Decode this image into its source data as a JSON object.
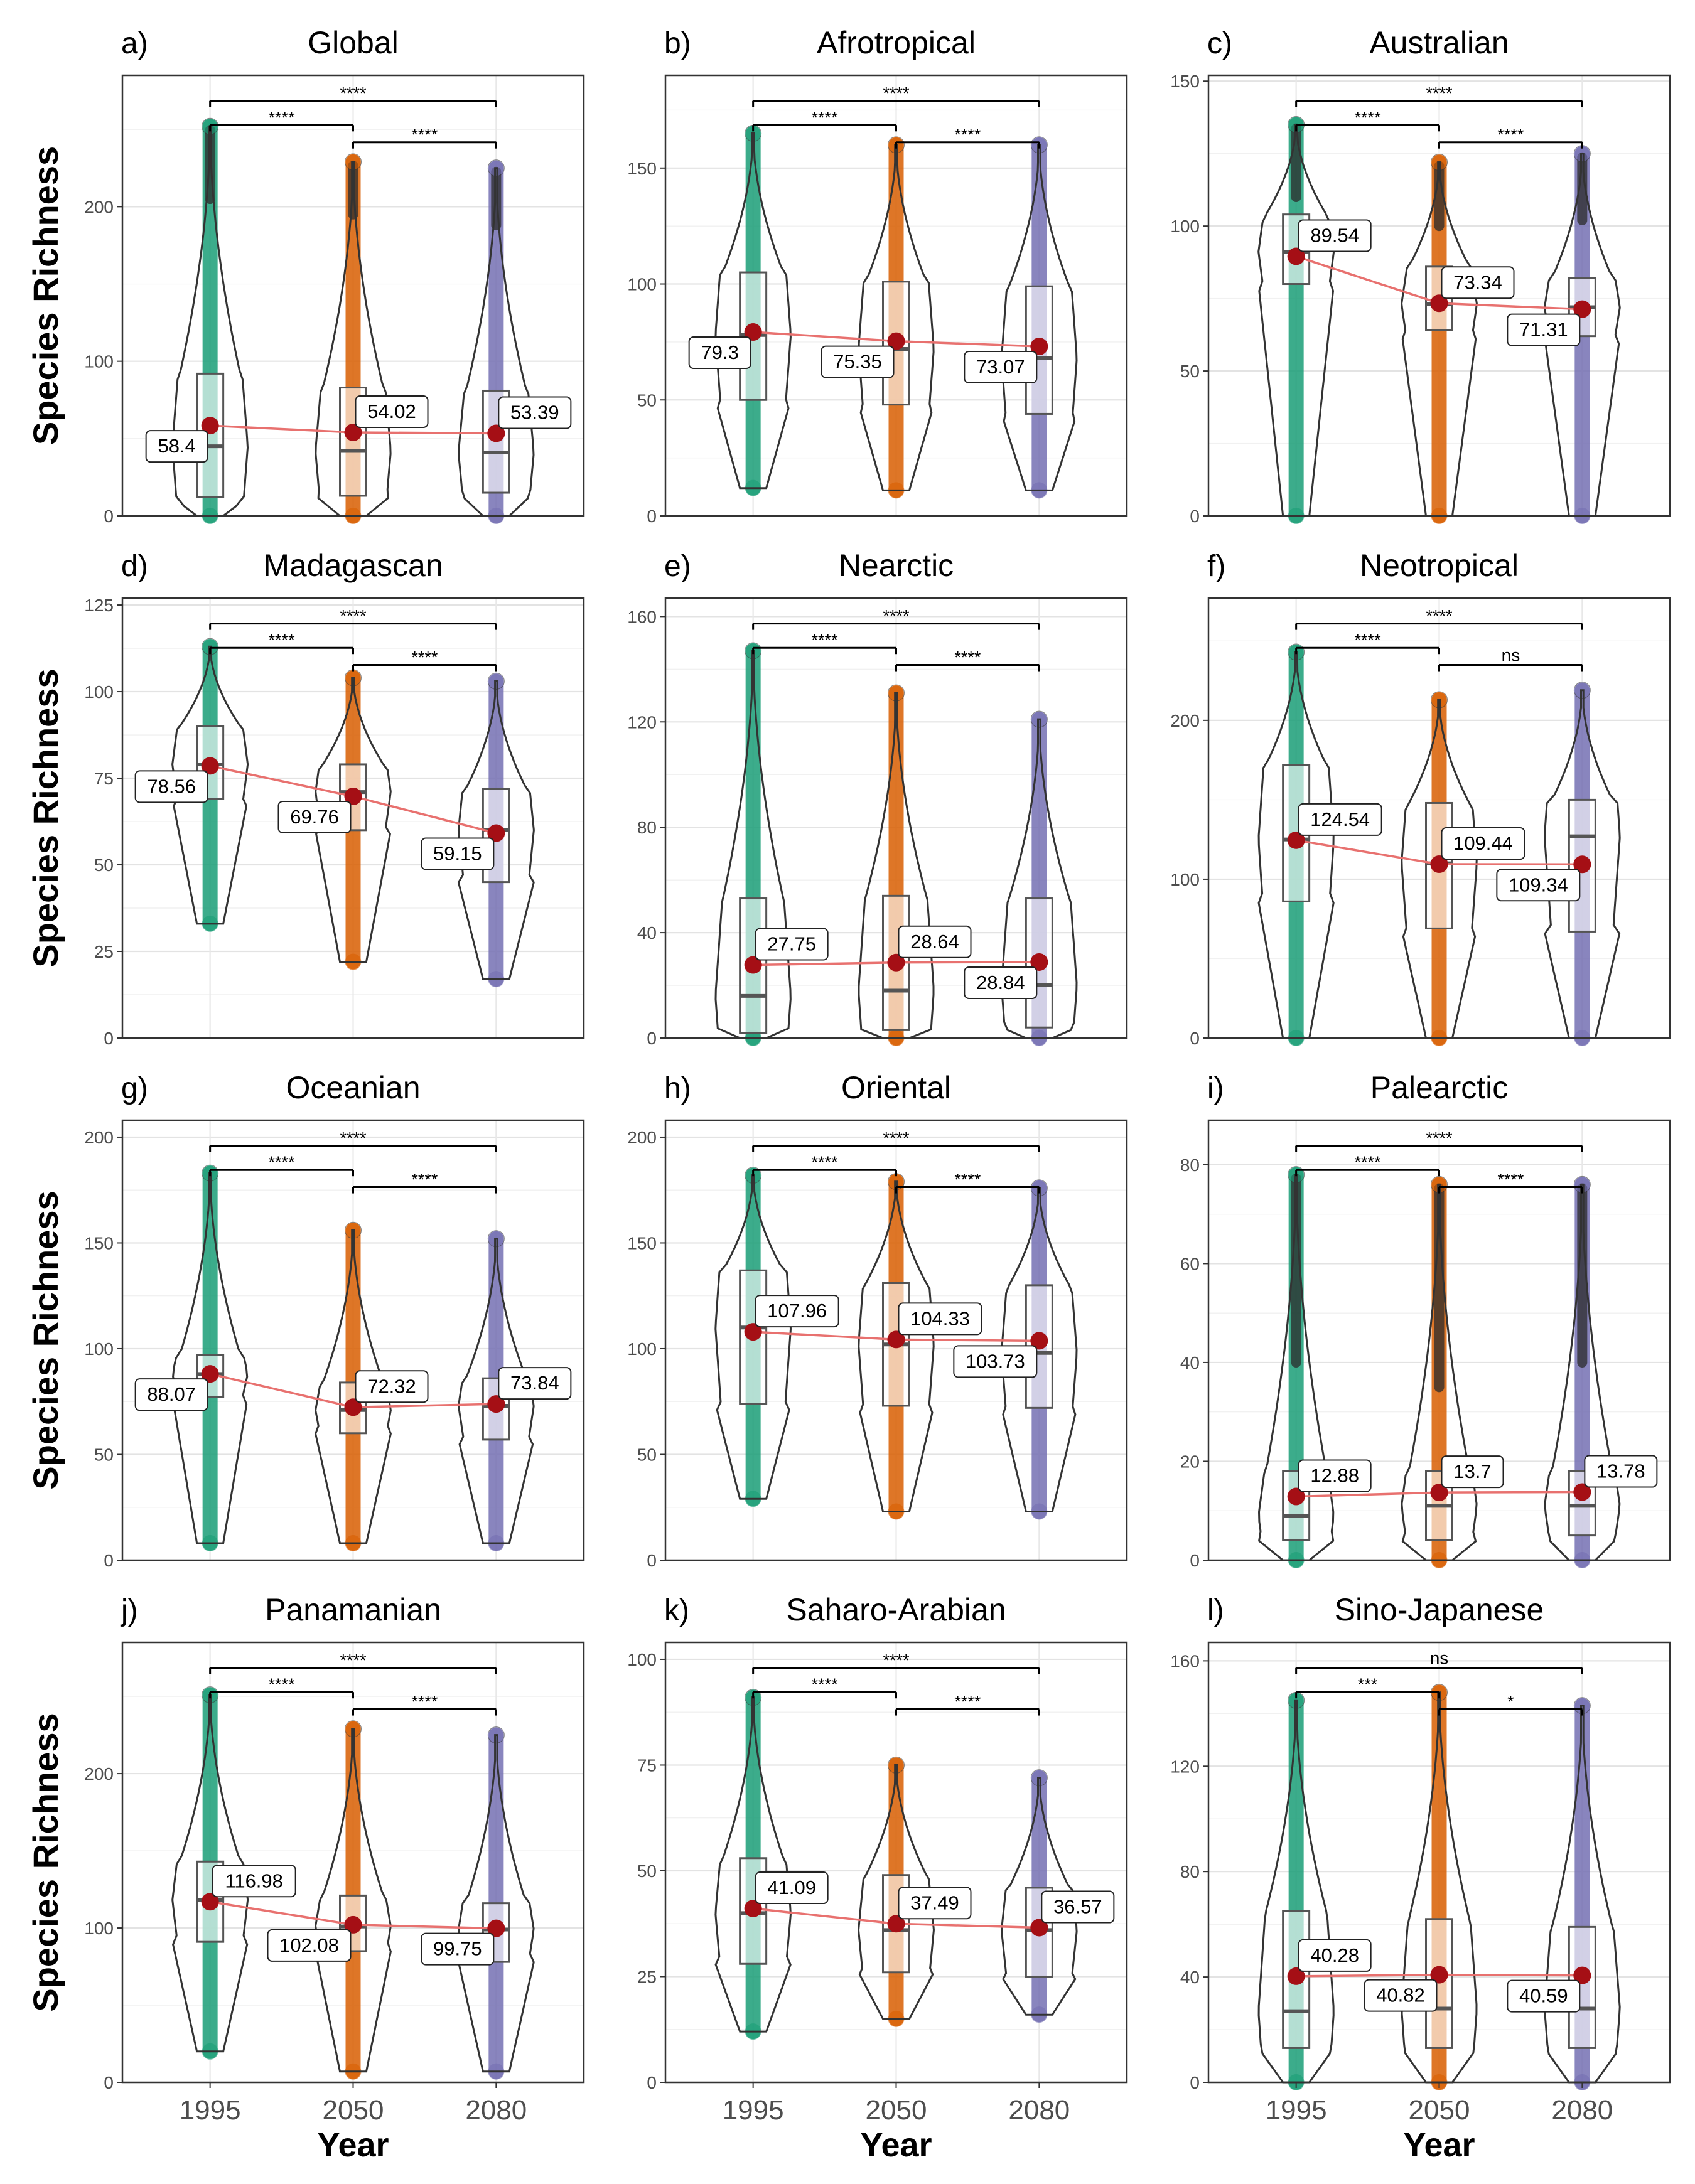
{
  "figure": {
    "ylabel": "Species Richness",
    "xlabel": "Year",
    "colors": {
      "1995": "#1b9e77",
      "2050": "#d95f02",
      "2080": "#7570b3",
      "mean_point": "#a50f15",
      "mean_line": "#e8716f"
    }
  },
  "chart_data": [
    {
      "type": "violin",
      "panel_label": "a)",
      "title": "Global",
      "categories": [
        "1995",
        "2050",
        "2080"
      ],
      "yticks": [
        0,
        100,
        200
      ],
      "ylim": [
        0,
        285
      ],
      "means": [
        58.4,
        54.02,
        53.39
      ],
      "mean_labels": [
        "58.4",
        "54.02",
        "53.39"
      ],
      "label_sides": [
        "left",
        "right",
        "right"
      ],
      "range": [
        [
          0,
          252
        ],
        [
          0,
          229
        ],
        [
          0,
          225
        ]
      ],
      "box": [
        [
          12,
          45,
          92
        ],
        [
          13,
          42,
          83
        ],
        [
          15,
          41,
          81
        ]
      ],
      "dense_from": [
        205,
        195,
        188
      ],
      "comparisons": [
        {
          "from": "1995",
          "to": "2080",
          "label": "****"
        },
        {
          "from": "1995",
          "to": "2050",
          "label": "****"
        },
        {
          "from": "2050",
          "to": "2080",
          "label": "****"
        }
      ]
    },
    {
      "type": "violin",
      "panel_label": "b)",
      "title": "Afrotropical",
      "categories": [
        "1995",
        "2050",
        "2080"
      ],
      "yticks": [
        0,
        50,
        100,
        150
      ],
      "ylim": [
        0,
        190
      ],
      "means": [
        79.3,
        75.35,
        73.07
      ],
      "mean_labels": [
        "79.3",
        "75.35",
        "73.07"
      ],
      "label_sides": [
        "left",
        "left",
        "left"
      ],
      "range": [
        [
          12,
          165
        ],
        [
          11,
          160
        ],
        [
          11,
          160
        ]
      ],
      "box": [
        [
          50,
          78,
          105
        ],
        [
          48,
          72,
          101
        ],
        [
          44,
          68,
          99
        ]
      ],
      "dense_from": [
        null,
        null,
        null
      ],
      "comparisons": [
        {
          "from": "1995",
          "to": "2080",
          "label": "****"
        },
        {
          "from": "1995",
          "to": "2050",
          "label": "****"
        },
        {
          "from": "2050",
          "to": "2080",
          "label": "****"
        }
      ]
    },
    {
      "type": "violin",
      "panel_label": "c)",
      "title": "Australian",
      "categories": [
        "1995",
        "2050",
        "2080"
      ],
      "yticks": [
        0,
        50,
        100,
        150
      ],
      "ylim": [
        0,
        152
      ],
      "means": [
        89.54,
        73.34,
        71.31
      ],
      "mean_labels": [
        "89.54",
        "73.34",
        "71.31"
      ],
      "label_sides": [
        "right",
        "right",
        "left"
      ],
      "range": [
        [
          0,
          135
        ],
        [
          0,
          122
        ],
        [
          0,
          125
        ]
      ],
      "box": [
        [
          80,
          91,
          104
        ],
        [
          64,
          73,
          86
        ],
        [
          62,
          72,
          82
        ]
      ],
      "dense_from": [
        110,
        100,
        102
      ],
      "comparisons": [
        {
          "from": "1995",
          "to": "2080",
          "label": "****"
        },
        {
          "from": "1995",
          "to": "2050",
          "label": "****"
        },
        {
          "from": "2050",
          "to": "2080",
          "label": "****"
        }
      ]
    },
    {
      "type": "violin",
      "panel_label": "d)",
      "title": "Madagascan",
      "categories": [
        "1995",
        "2050",
        "2080"
      ],
      "yticks": [
        0,
        25,
        50,
        75,
        100,
        125
      ],
      "ylim": [
        0,
        127
      ],
      "means": [
        78.56,
        69.76,
        59.15
      ],
      "mean_labels": [
        "78.56",
        "69.76",
        "59.15"
      ],
      "label_sides": [
        "left",
        "left",
        "left"
      ],
      "range": [
        [
          33,
          113
        ],
        [
          22,
          104
        ],
        [
          17,
          103
        ]
      ],
      "box": [
        [
          69,
          79,
          90
        ],
        [
          60,
          71,
          79
        ],
        [
          45,
          60,
          72
        ]
      ],
      "dense_from": [
        null,
        null,
        null
      ],
      "comparisons": [
        {
          "from": "1995",
          "to": "2080",
          "label": "****"
        },
        {
          "from": "1995",
          "to": "2050",
          "label": "****"
        },
        {
          "from": "2050",
          "to": "2080",
          "label": "****"
        }
      ]
    },
    {
      "type": "violin",
      "panel_label": "e)",
      "title": "Nearctic",
      "categories": [
        "1995",
        "2050",
        "2080"
      ],
      "yticks": [
        0,
        40,
        80,
        120,
        160
      ],
      "ylim": [
        0,
        167
      ],
      "means": [
        27.75,
        28.64,
        28.84
      ],
      "mean_labels": [
        "27.75",
        "28.64",
        "28.84"
      ],
      "label_sides": [
        "right",
        "right",
        "left"
      ],
      "range": [
        [
          0,
          147
        ],
        [
          0,
          131
        ],
        [
          0,
          121
        ]
      ],
      "box": [
        [
          2,
          16,
          53
        ],
        [
          3,
          18,
          54
        ],
        [
          4,
          20,
          53
        ]
      ],
      "dense_from": [
        null,
        null,
        null
      ],
      "comparisons": [
        {
          "from": "1995",
          "to": "2080",
          "label": "****"
        },
        {
          "from": "1995",
          "to": "2050",
          "label": "****"
        },
        {
          "from": "2050",
          "to": "2080",
          "label": "****"
        }
      ]
    },
    {
      "type": "violin",
      "panel_label": "f)",
      "title": "Neotropical",
      "categories": [
        "1995",
        "2050",
        "2080"
      ],
      "yticks": [
        0,
        100,
        200
      ],
      "ylim": [
        0,
        277
      ],
      "means": [
        124.54,
        109.44,
        109.34
      ],
      "mean_labels": [
        "124.54",
        "109.44",
        "109.34"
      ],
      "label_sides": [
        "right",
        "right",
        "left"
      ],
      "range": [
        [
          0,
          243
        ],
        [
          0,
          213
        ],
        [
          0,
          219
        ]
      ],
      "box": [
        [
          86,
          125,
          172
        ],
        [
          69,
          110,
          148
        ],
        [
          67,
          127,
          150
        ]
      ],
      "dense_from": [
        null,
        null,
        null
      ],
      "comparisons": [
        {
          "from": "1995",
          "to": "2080",
          "label": "****"
        },
        {
          "from": "1995",
          "to": "2050",
          "label": "****"
        },
        {
          "from": "2050",
          "to": "2080",
          "label": "ns"
        }
      ]
    },
    {
      "type": "violin",
      "panel_label": "g)",
      "title": "Oceanian",
      "categories": [
        "1995",
        "2050",
        "2080"
      ],
      "yticks": [
        0,
        50,
        100,
        150,
        200
      ],
      "ylim": [
        0,
        208
      ],
      "means": [
        88.07,
        72.32,
        73.84
      ],
      "mean_labels": [
        "88.07",
        "72.32",
        "73.84"
      ],
      "label_sides": [
        "left",
        "right",
        "right"
      ],
      "range": [
        [
          8,
          183
        ],
        [
          8,
          156
        ],
        [
          8,
          152
        ]
      ],
      "box": [
        [
          77,
          88,
          97
        ],
        [
          60,
          71,
          84
        ],
        [
          57,
          73,
          86
        ]
      ],
      "dense_from": [
        null,
        null,
        null
      ],
      "comparisons": [
        {
          "from": "1995",
          "to": "2080",
          "label": "****"
        },
        {
          "from": "1995",
          "to": "2050",
          "label": "****"
        },
        {
          "from": "2050",
          "to": "2080",
          "label": "****"
        }
      ]
    },
    {
      "type": "violin",
      "panel_label": "h)",
      "title": "Oriental",
      "categories": [
        "1995",
        "2050",
        "2080"
      ],
      "yticks": [
        0,
        50,
        100,
        150,
        200
      ],
      "ylim": [
        0,
        208
      ],
      "means": [
        107.96,
        104.33,
        103.73
      ],
      "mean_labels": [
        "107.96",
        "104.33",
        "103.73"
      ],
      "label_sides": [
        "right",
        "right",
        "left"
      ],
      "range": [
        [
          29,
          182
        ],
        [
          23,
          179
        ],
        [
          23,
          176
        ]
      ],
      "box": [
        [
          74,
          110,
          137
        ],
        [
          73,
          102,
          131
        ],
        [
          72,
          98,
          130
        ]
      ],
      "dense_from": [
        null,
        null,
        null
      ],
      "comparisons": [
        {
          "from": "1995",
          "to": "2080",
          "label": "****"
        },
        {
          "from": "1995",
          "to": "2050",
          "label": "****"
        },
        {
          "from": "2050",
          "to": "2080",
          "label": "****"
        }
      ]
    },
    {
      "type": "violin",
      "panel_label": "i)",
      "title": "Palearctic",
      "categories": [
        "1995",
        "2050",
        "2080"
      ],
      "yticks": [
        0,
        20,
        40,
        60,
        80
      ],
      "ylim": [
        0,
        89
      ],
      "means": [
        12.88,
        13.7,
        13.78
      ],
      "mean_labels": [
        "12.88",
        "13.7",
        "13.78"
      ],
      "label_sides": [
        "right",
        "right",
        "right"
      ],
      "range": [
        [
          0,
          78
        ],
        [
          0,
          76
        ],
        [
          0,
          76
        ]
      ],
      "box": [
        [
          4,
          9,
          18
        ],
        [
          4,
          11,
          18
        ],
        [
          5,
          11,
          18
        ]
      ],
      "dense_from": [
        40,
        35,
        40
      ],
      "comparisons": [
        {
          "from": "1995",
          "to": "2080",
          "label": "****"
        },
        {
          "from": "1995",
          "to": "2050",
          "label": "****"
        },
        {
          "from": "2050",
          "to": "2080",
          "label": "****"
        }
      ]
    },
    {
      "type": "violin",
      "panel_label": "j)",
      "title": "Panamanian",
      "categories": [
        "1995",
        "2050",
        "2080"
      ],
      "yticks": [
        0,
        100,
        200
      ],
      "ylim": [
        0,
        285
      ],
      "means": [
        116.98,
        102.08,
        99.75
      ],
      "mean_labels": [
        "116.98",
        "102.08",
        "99.75"
      ],
      "label_sides": [
        "right",
        "left",
        "left"
      ],
      "range": [
        [
          20,
          251
        ],
        [
          7,
          229
        ],
        [
          7,
          225
        ]
      ],
      "box": [
        [
          91,
          118,
          143
        ],
        [
          85,
          101,
          121
        ],
        [
          78,
          99,
          116
        ]
      ],
      "dense_from": [
        null,
        null,
        null
      ],
      "comparisons": [
        {
          "from": "1995",
          "to": "2080",
          "label": "****"
        },
        {
          "from": "1995",
          "to": "2050",
          "label": "****"
        },
        {
          "from": "2050",
          "to": "2080",
          "label": "****"
        }
      ]
    },
    {
      "type": "violin",
      "panel_label": "k)",
      "title": "Saharo-Arabian",
      "categories": [
        "1995",
        "2050",
        "2080"
      ],
      "yticks": [
        0,
        25,
        50,
        75,
        100
      ],
      "ylim": [
        0,
        104
      ],
      "means": [
        41.09,
        37.49,
        36.57
      ],
      "mean_labels": [
        "41.09",
        "37.49",
        "36.57"
      ],
      "label_sides": [
        "right",
        "right",
        "right"
      ],
      "range": [
        [
          12,
          91
        ],
        [
          15,
          75
        ],
        [
          16,
          72
        ]
      ],
      "box": [
        [
          28,
          40,
          53
        ],
        [
          26,
          36,
          49
        ],
        [
          25,
          36,
          46
        ]
      ],
      "dense_from": [
        null,
        null,
        null
      ],
      "comparisons": [
        {
          "from": "1995",
          "to": "2080",
          "label": "****"
        },
        {
          "from": "1995",
          "to": "2050",
          "label": "****"
        },
        {
          "from": "2050",
          "to": "2080",
          "label": "****"
        }
      ]
    },
    {
      "type": "violin",
      "panel_label": "l)",
      "title": "Sino-Japanese",
      "categories": [
        "1995",
        "2050",
        "2080"
      ],
      "yticks": [
        0,
        40,
        80,
        120,
        160
      ],
      "ylim": [
        0,
        167
      ],
      "means": [
        40.28,
        40.82,
        40.59
      ],
      "mean_labels": [
        "40.28",
        "40.82",
        "40.59"
      ],
      "label_sides": [
        "right",
        "left",
        "left"
      ],
      "range": [
        [
          0,
          145
        ],
        [
          0,
          148
        ],
        [
          0,
          143
        ]
      ],
      "box": [
        [
          13,
          27,
          65
        ],
        [
          13,
          28,
          62
        ],
        [
          13,
          28,
          59
        ]
      ],
      "dense_from": [
        null,
        null,
        null
      ],
      "comparisons": [
        {
          "from": "1995",
          "to": "2080",
          "label": "ns"
        },
        {
          "from": "1995",
          "to": "2050",
          "label": "***"
        },
        {
          "from": "2050",
          "to": "2080",
          "label": "*"
        }
      ]
    }
  ]
}
